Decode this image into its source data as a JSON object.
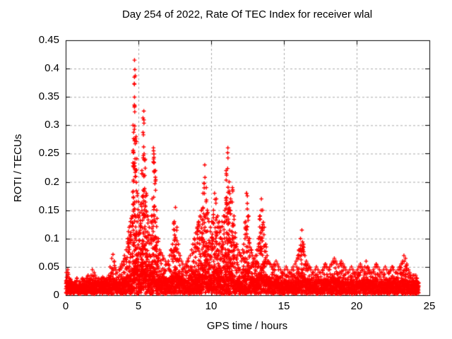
{
  "title": "Day 254 of 2022, Rate Of TEC Index for receiver wlal",
  "colors": {
    "marker": "#ff0000",
    "grid": "#aaaaaa",
    "axis": "#000000",
    "background": "#ffffff",
    "text": "#000000"
  },
  "chart_data": {
    "type": "scatter",
    "marker": "plus",
    "series_name": "ROTI",
    "title": "Day 254 of 2022, Rate Of TEC Index for receiver wlal",
    "xlabel": "GPS time / hours",
    "ylabel": "ROTI / TECUs",
    "xlim": [
      0,
      25
    ],
    "ylim": [
      0,
      0.45
    ],
    "xtick_values": [
      0,
      5,
      10,
      15,
      20,
      25
    ],
    "xtick_labels": [
      "0",
      "5",
      "10",
      "15",
      "20",
      "25"
    ],
    "ytick_values": [
      0,
      0.05,
      0.1,
      0.15,
      0.2,
      0.25,
      0.3,
      0.35,
      0.4,
      0.45
    ],
    "ytick_labels": [
      "0",
      "0.05",
      "0.1",
      "0.15",
      "0.2",
      "0.25",
      "0.3",
      "0.35",
      "0.4",
      "0.45"
    ],
    "grid": "dashed",
    "legend": "none",
    "data_start_hour": 0.0,
    "data_end_hour": 24.25,
    "baseline_band_top_typical": 0.025,
    "notable_peaks": [
      {
        "hour": 4.7,
        "roti": 0.415
      },
      {
        "hour": 5.3,
        "roti": 0.325
      },
      {
        "hour": 6.0,
        "roti": 0.26
      },
      {
        "hour": 7.5,
        "roti": 0.155
      },
      {
        "hour": 9.5,
        "roti": 0.23
      },
      {
        "hour": 10.2,
        "roti": 0.18
      },
      {
        "hour": 11.1,
        "roti": 0.26
      },
      {
        "hour": 12.4,
        "roti": 0.18
      },
      {
        "hour": 13.4,
        "roti": 0.17
      },
      {
        "hour": 16.2,
        "roti": 0.115
      },
      {
        "hour": 20.1,
        "roti": 0.065
      },
      {
        "hour": 23.2,
        "roti": 0.07
      }
    ],
    "envelope_step_hours": 0.1,
    "envelope_max_roti": [
      0.04,
      0.045,
      0.03,
      0.028,
      0.025,
      0.025,
      0.028,
      0.03,
      0.025,
      0.025,
      0.025,
      0.03,
      0.028,
      0.025,
      0.03,
      0.035,
      0.03,
      0.035,
      0.045,
      0.04,
      0.035,
      0.03,
      0.03,
      0.028,
      0.03,
      0.032,
      0.03,
      0.028,
      0.03,
      0.035,
      0.05,
      0.065,
      0.072,
      0.06,
      0.045,
      0.04,
      0.045,
      0.05,
      0.055,
      0.06,
      0.07,
      0.08,
      0.1,
      0.12,
      0.13,
      0.14,
      0.3,
      0.415,
      0.28,
      0.18,
      0.14,
      0.16,
      0.22,
      0.325,
      0.24,
      0.18,
      0.14,
      0.12,
      0.13,
      0.17,
      0.26,
      0.22,
      0.15,
      0.1,
      0.08,
      0.075,
      0.07,
      0.065,
      0.06,
      0.055,
      0.06,
      0.07,
      0.08,
      0.09,
      0.13,
      0.155,
      0.12,
      0.09,
      0.07,
      0.06,
      0.055,
      0.05,
      0.055,
      0.06,
      0.065,
      0.07,
      0.08,
      0.09,
      0.1,
      0.11,
      0.12,
      0.13,
      0.14,
      0.15,
      0.18,
      0.23,
      0.19,
      0.15,
      0.13,
      0.12,
      0.13,
      0.15,
      0.18,
      0.17,
      0.14,
      0.13,
      0.12,
      0.13,
      0.14,
      0.15,
      0.22,
      0.26,
      0.2,
      0.17,
      0.19,
      0.14,
      0.11,
      0.09,
      0.08,
      0.075,
      0.07,
      0.08,
      0.09,
      0.13,
      0.18,
      0.14,
      0.1,
      0.08,
      0.07,
      0.065,
      0.07,
      0.08,
      0.1,
      0.14,
      0.17,
      0.15,
      0.12,
      0.09,
      0.07,
      0.06,
      0.055,
      0.05,
      0.05,
      0.055,
      0.06,
      0.055,
      0.05,
      0.045,
      0.04,
      0.04,
      0.045,
      0.05,
      0.045,
      0.04,
      0.04,
      0.045,
      0.05,
      0.055,
      0.06,
      0.07,
      0.08,
      0.1,
      0.115,
      0.09,
      0.07,
      0.06,
      0.055,
      0.05,
      0.045,
      0.04,
      0.04,
      0.045,
      0.05,
      0.045,
      0.04,
      0.04,
      0.045,
      0.05,
      0.055,
      0.05,
      0.045,
      0.05,
      0.055,
      0.06,
      0.065,
      0.06,
      0.055,
      0.05,
      0.055,
      0.06,
      0.055,
      0.05,
      0.045,
      0.04,
      0.04,
      0.045,
      0.05,
      0.045,
      0.04,
      0.04,
      0.045,
      0.05,
      0.055,
      0.05,
      0.045,
      0.05,
      0.06,
      0.05,
      0.045,
      0.04,
      0.04,
      0.045,
      0.05,
      0.055,
      0.05,
      0.045,
      0.04,
      0.04,
      0.045,
      0.05,
      0.045,
      0.04,
      0.04,
      0.045,
      0.05,
      0.045,
      0.04,
      0.04,
      0.045,
      0.05,
      0.055,
      0.06,
      0.07,
      0.065,
      0.055,
      0.045,
      0.04,
      0.035,
      0.035,
      0.035,
      0.035,
      0.03,
      0.025
    ]
  }
}
